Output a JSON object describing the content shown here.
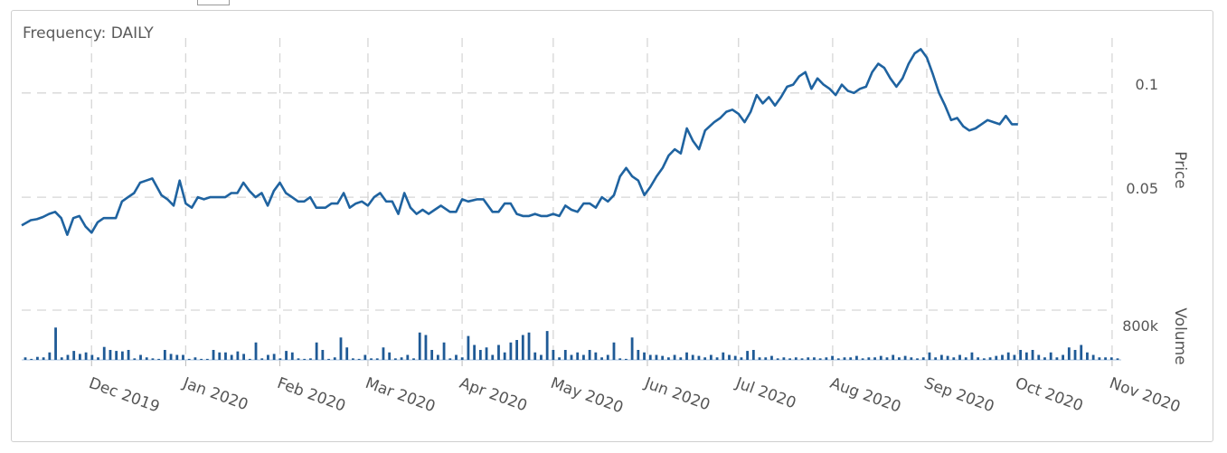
{
  "frequency_label": "Frequency: DAILY",
  "colors": {
    "line": "#1f63a0",
    "volume": "#1f5a96",
    "grid": "#d6d6d6",
    "text": "#555555"
  },
  "chart_data": [
    {
      "type": "line",
      "ylabel": "Price",
      "y_ticks": [
        "0.1",
        "0.05"
      ],
      "y_tick_values": [
        0.1,
        0.05
      ],
      "ylim": [
        0.0015,
        0.1255
      ],
      "x_tick_labels": [
        "Dec 2019",
        "Jan 2020",
        "Feb 2020",
        "Mar 2020",
        "Apr 2020",
        "May 2020",
        "Jun 2020",
        "Jul 2020",
        "Aug 2020",
        "Sep 2020",
        "Oct 2020",
        "Nov 2020"
      ],
      "x_tick_dates": [
        "2019-12-01",
        "2020-01-01",
        "2020-02-01",
        "2020-03-01",
        "2020-04-01",
        "2020-05-01",
        "2020-06-01",
        "2020-07-01",
        "2020-08-01",
        "2020-09-01",
        "2020-10-01",
        "2020-11-01"
      ],
      "x_range": [
        "2019-11-08",
        "2020-11-04"
      ],
      "grid": true,
      "series": [
        {
          "points": [
            [
              "2019-11-08",
              0.0365
            ],
            [
              "2019-11-11",
              0.039
            ],
            [
              "2019-11-13",
              0.0395
            ],
            [
              "2019-11-15",
              0.0405
            ],
            [
              "2019-11-17",
              0.042
            ],
            [
              "2019-11-19",
              0.043
            ],
            [
              "2019-11-21",
              0.04
            ],
            [
              "2019-11-23",
              0.032
            ],
            [
              "2019-11-25",
              0.04
            ],
            [
              "2019-11-27",
              0.041
            ],
            [
              "2019-11-29",
              0.036
            ],
            [
              "2019-12-01",
              0.033
            ],
            [
              "2019-12-03",
              0.038
            ],
            [
              "2019-12-05",
              0.04
            ],
            [
              "2019-12-09",
              0.04
            ],
            [
              "2019-12-11",
              0.048
            ],
            [
              "2019-12-13",
              0.05
            ],
            [
              "2019-12-15",
              0.052
            ],
            [
              "2019-12-17",
              0.057
            ],
            [
              "2019-12-19",
              0.058
            ],
            [
              "2019-12-21",
              0.059
            ],
            [
              "2019-12-24",
              0.051
            ],
            [
              "2019-12-26",
              0.049
            ],
            [
              "2019-12-28",
              0.046
            ],
            [
              "2019-12-30",
              0.058
            ],
            [
              "2020-01-01",
              0.047
            ],
            [
              "2020-01-03",
              0.045
            ],
            [
              "2020-01-05",
              0.05
            ],
            [
              "2020-01-07",
              0.049
            ],
            [
              "2020-01-09",
              0.05
            ],
            [
              "2020-01-12",
              0.05
            ],
            [
              "2020-01-14",
              0.05
            ],
            [
              "2020-01-16",
              0.052
            ],
            [
              "2020-01-18",
              0.052
            ],
            [
              "2020-01-20",
              0.057
            ],
            [
              "2020-01-22",
              0.053
            ],
            [
              "2020-01-24",
              0.05
            ],
            [
              "2020-01-26",
              0.052
            ],
            [
              "2020-01-28",
              0.046
            ],
            [
              "2020-01-30",
              0.053
            ],
            [
              "2020-02-01",
              0.057
            ],
            [
              "2020-02-03",
              0.052
            ],
            [
              "2020-02-05",
              0.05
            ],
            [
              "2020-02-07",
              0.048
            ],
            [
              "2020-02-09",
              0.048
            ],
            [
              "2020-02-11",
              0.05
            ],
            [
              "2020-02-13",
              0.045
            ],
            [
              "2020-02-16",
              0.045
            ],
            [
              "2020-02-18",
              0.047
            ],
            [
              "2020-02-20",
              0.047
            ],
            [
              "2020-02-22",
              0.052
            ],
            [
              "2020-02-24",
              0.045
            ],
            [
              "2020-02-26",
              0.047
            ],
            [
              "2020-02-28",
              0.048
            ],
            [
              "2020-03-01",
              0.046
            ],
            [
              "2020-03-03",
              0.05
            ],
            [
              "2020-03-05",
              0.052
            ],
            [
              "2020-03-07",
              0.048
            ],
            [
              "2020-03-09",
              0.048
            ],
            [
              "2020-03-11",
              0.042
            ],
            [
              "2020-03-13",
              0.052
            ],
            [
              "2020-03-15",
              0.045
            ],
            [
              "2020-03-17",
              0.042
            ],
            [
              "2020-03-19",
              0.044
            ],
            [
              "2020-03-21",
              0.042
            ],
            [
              "2020-03-23",
              0.044
            ],
            [
              "2020-03-25",
              0.046
            ],
            [
              "2020-03-28",
              0.043
            ],
            [
              "2020-03-30",
              0.043
            ],
            [
              "2020-04-01",
              0.049
            ],
            [
              "2020-04-03",
              0.048
            ],
            [
              "2020-04-06",
              0.049
            ],
            [
              "2020-04-08",
              0.049
            ],
            [
              "2020-04-11",
              0.043
            ],
            [
              "2020-04-13",
              0.043
            ],
            [
              "2020-04-15",
              0.047
            ],
            [
              "2020-04-17",
              0.047
            ],
            [
              "2020-04-19",
              0.042
            ],
            [
              "2020-04-21",
              0.041
            ],
            [
              "2020-04-23",
              0.041
            ],
            [
              "2020-04-25",
              0.042
            ],
            [
              "2020-04-27",
              0.041
            ],
            [
              "2020-04-29",
              0.041
            ],
            [
              "2020-05-01",
              0.042
            ],
            [
              "2020-05-03",
              0.041
            ],
            [
              "2020-05-05",
              0.046
            ],
            [
              "2020-05-07",
              0.044
            ],
            [
              "2020-05-09",
              0.043
            ],
            [
              "2020-05-11",
              0.047
            ],
            [
              "2020-05-13",
              0.047
            ],
            [
              "2020-05-15",
              0.045
            ],
            [
              "2020-05-17",
              0.05
            ],
            [
              "2020-05-19",
              0.048
            ],
            [
              "2020-05-21",
              0.051
            ],
            [
              "2020-05-23",
              0.06
            ],
            [
              "2020-05-25",
              0.064
            ],
            [
              "2020-05-27",
              0.06
            ],
            [
              "2020-05-29",
              0.058
            ],
            [
              "2020-05-31",
              0.051
            ],
            [
              "2020-06-02",
              0.055
            ],
            [
              "2020-06-04",
              0.06
            ],
            [
              "2020-06-06",
              0.064
            ],
            [
              "2020-06-08",
              0.07
            ],
            [
              "2020-06-10",
              0.073
            ],
            [
              "2020-06-12",
              0.071
            ],
            [
              "2020-06-14",
              0.083
            ],
            [
              "2020-06-16",
              0.077
            ],
            [
              "2020-06-18",
              0.073
            ],
            [
              "2020-06-20",
              0.082
            ],
            [
              "2020-06-23",
              0.086
            ],
            [
              "2020-06-25",
              0.088
            ],
            [
              "2020-06-27",
              0.091
            ],
            [
              "2020-06-29",
              0.092
            ],
            [
              "2020-07-01",
              0.09
            ],
            [
              "2020-07-03",
              0.086
            ],
            [
              "2020-07-05",
              0.091
            ],
            [
              "2020-07-07",
              0.099
            ],
            [
              "2020-07-09",
              0.095
            ],
            [
              "2020-07-11",
              0.098
            ],
            [
              "2020-07-13",
              0.094
            ],
            [
              "2020-07-15",
              0.098
            ],
            [
              "2020-07-17",
              0.103
            ],
            [
              "2020-07-19",
              0.104
            ],
            [
              "2020-07-21",
              0.108
            ],
            [
              "2020-07-23",
              0.11
            ],
            [
              "2020-07-25",
              0.102
            ],
            [
              "2020-07-27",
              0.107
            ],
            [
              "2020-07-29",
              0.104
            ],
            [
              "2020-07-31",
              0.102
            ],
            [
              "2020-08-02",
              0.099
            ],
            [
              "2020-08-04",
              0.104
            ],
            [
              "2020-08-06",
              0.101
            ],
            [
              "2020-08-08",
              0.1
            ],
            [
              "2020-08-10",
              0.102
            ],
            [
              "2020-08-12",
              0.103
            ],
            [
              "2020-08-14",
              0.11
            ],
            [
              "2020-08-16",
              0.114
            ],
            [
              "2020-08-18",
              0.112
            ],
            [
              "2020-08-20",
              0.107
            ],
            [
              "2020-08-22",
              0.103
            ],
            [
              "2020-08-24",
              0.107
            ],
            [
              "2020-08-26",
              0.114
            ],
            [
              "2020-08-28",
              0.119
            ],
            [
              "2020-08-30",
              0.121
            ],
            [
              "2020-09-01",
              0.117
            ],
            [
              "2020-09-03",
              0.109
            ],
            [
              "2020-09-05",
              0.1
            ],
            [
              "2020-09-07",
              0.094
            ],
            [
              "2020-09-09",
              0.087
            ],
            [
              "2020-09-11",
              0.088
            ],
            [
              "2020-09-13",
              0.084
            ],
            [
              "2020-09-15",
              0.082
            ],
            [
              "2020-09-17",
              0.083
            ],
            [
              "2020-09-19",
              0.085
            ],
            [
              "2020-09-21",
              0.087
            ],
            [
              "2020-09-23",
              0.086
            ],
            [
              "2020-09-25",
              0.085
            ],
            [
              "2020-09-27",
              0.089
            ],
            [
              "2020-09-29",
              0.085
            ],
            [
              "2020-10-01",
              0.085
            ]
          ]
        }
      ]
    },
    {
      "type": "bar",
      "ylabel": "Volume",
      "y_ticks": [
        "800k"
      ],
      "y_tick_values": [
        800000
      ],
      "ylim": [
        0,
        1000000
      ],
      "grid": true,
      "bars_description": "daily trading volume bars",
      "values": [
        50000,
        20000,
        60000,
        50000,
        150000,
        650000,
        50000,
        100000,
        180000,
        120000,
        150000,
        100000,
        50000,
        260000,
        200000,
        180000,
        170000,
        200000,
        30000,
        100000,
        50000,
        30000,
        20000,
        200000,
        120000,
        100000,
        100000,
        20000,
        50000,
        20000,
        20000,
        200000,
        150000,
        150000,
        100000,
        170000,
        120000,
        20000,
        350000,
        30000,
        100000,
        120000,
        30000,
        180000,
        150000,
        30000,
        20000,
        30000,
        350000,
        200000,
        20000,
        50000,
        450000,
        250000,
        30000,
        20000,
        100000,
        30000,
        30000,
        250000,
        150000,
        30000,
        50000,
        100000,
        30000,
        550000,
        500000,
        200000,
        100000,
        350000,
        30000,
        100000,
        50000,
        480000,
        300000,
        200000,
        250000,
        100000,
        300000,
        150000,
        350000,
        400000,
        500000,
        550000,
        150000,
        100000,
        580000,
        200000,
        50000,
        200000,
        100000,
        150000,
        100000,
        200000,
        150000,
        50000,
        100000,
        350000,
        30000,
        20000,
        450000,
        200000,
        150000,
        100000,
        100000,
        80000,
        50000,
        100000,
        50000,
        150000,
        100000,
        80000,
        50000,
        100000,
        50000,
        150000,
        100000,
        80000,
        50000,
        180000,
        200000,
        50000,
        50000,
        80000,
        30000,
        50000,
        30000,
        50000,
        30000,
        50000,
        50000,
        30000,
        50000,
        80000,
        30000,
        50000,
        50000,
        80000,
        30000,
        50000,
        50000,
        80000,
        50000,
        100000,
        50000,
        80000,
        50000,
        30000,
        50000,
        150000,
        50000,
        100000,
        80000,
        50000,
        100000,
        50000,
        150000,
        50000,
        30000,
        50000,
        80000,
        100000,
        150000,
        100000,
        200000,
        150000,
        200000,
        100000,
        50000,
        150000,
        50000,
        100000,
        250000,
        200000,
        300000,
        150000,
        100000,
        50000,
        50000,
        50000,
        30000
      ]
    }
  ]
}
